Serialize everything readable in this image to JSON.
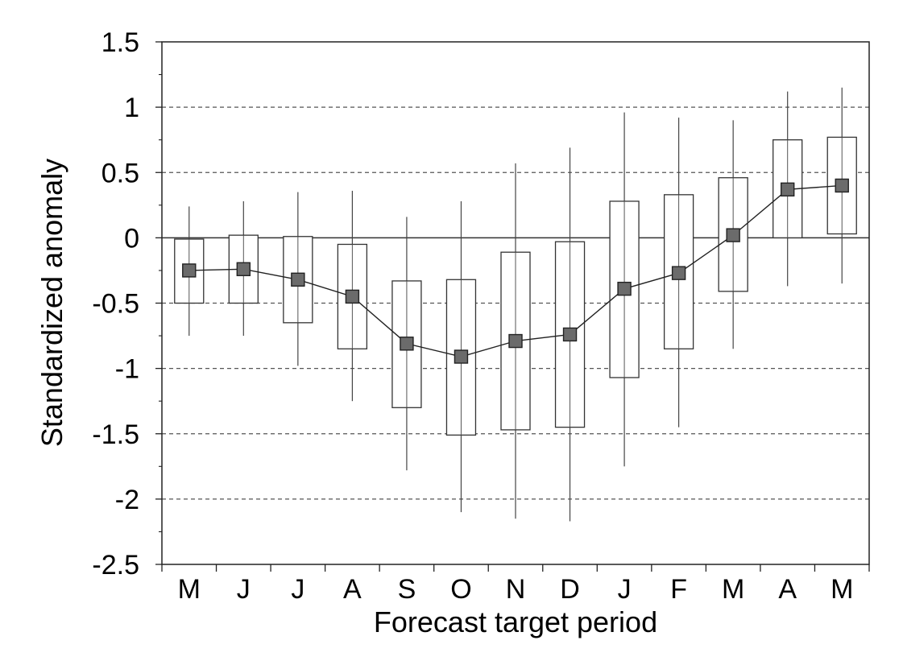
{
  "chart_data": {
    "type": "box",
    "xlabel": "Forecast target period",
    "ylabel": "Standardized anomaly",
    "ylim": [
      -2.5,
      1.5
    ],
    "yticks": [
      1.5,
      1,
      0.5,
      0,
      -0.5,
      -1,
      -1.5,
      -2,
      -2.5
    ],
    "ytick_labels": [
      "1.5",
      "1",
      "0.5",
      "0",
      "-0.5",
      "-1",
      "-1.5",
      "-2",
      "-2.5"
    ],
    "categories": [
      "M",
      "J",
      "J",
      "A",
      "S",
      "O",
      "N",
      "D",
      "J",
      "F",
      "M",
      "A",
      "M"
    ],
    "grid": "horizontal dashed at 1, 0.5, -0.5, -1, -1.5, -2; solid line at 0",
    "whisker_high": [
      0.24,
      0.28,
      0.35,
      0.36,
      0.16,
      0.28,
      0.57,
      0.69,
      0.96,
      0.92,
      0.9,
      1.12,
      1.15
    ],
    "box_top": [
      -0.01,
      0.02,
      0.01,
      -0.05,
      -0.33,
      -0.32,
      -0.11,
      -0.03,
      0.28,
      0.33,
      0.46,
      0.75,
      0.77
    ],
    "mean": [
      -0.25,
      -0.24,
      -0.32,
      -0.45,
      -0.81,
      -0.91,
      -0.79,
      -0.74,
      -0.39,
      -0.27,
      0.02,
      0.37,
      0.4
    ],
    "box_bottom": [
      -0.5,
      -0.5,
      -0.65,
      -0.85,
      -1.3,
      -1.51,
      -1.47,
      -1.45,
      -1.07,
      -0.85,
      -0.41,
      0.0,
      0.03
    ],
    "whisker_low": [
      -0.75,
      -0.75,
      -0.98,
      -1.25,
      -1.78,
      -2.1,
      -2.15,
      -2.17,
      -1.75,
      -1.45,
      -0.85,
      -0.37,
      -0.35
    ]
  }
}
